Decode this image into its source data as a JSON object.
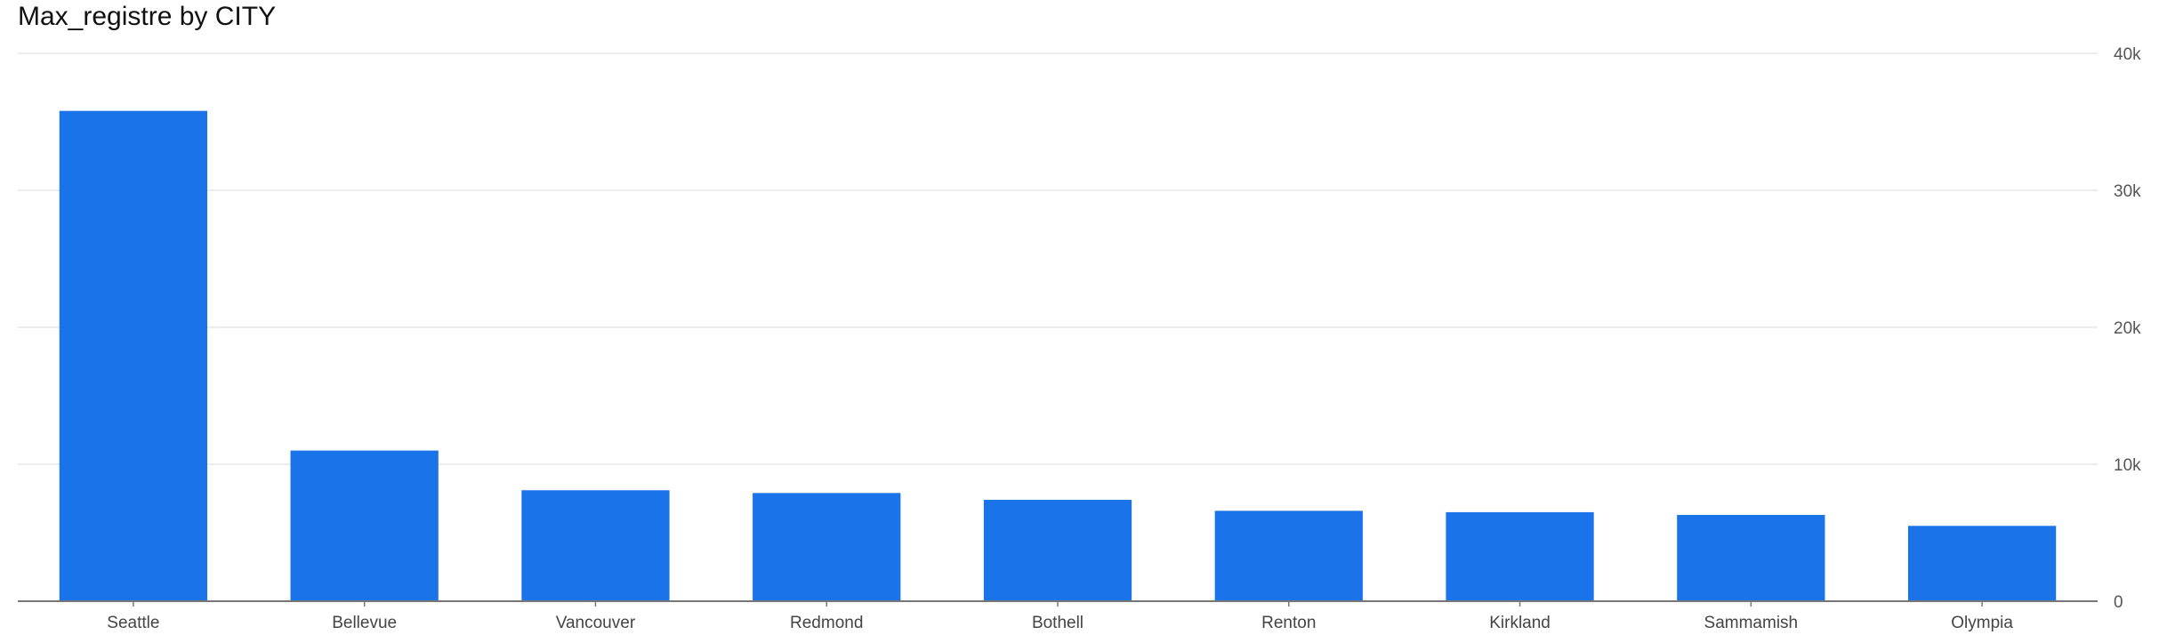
{
  "chart_data": {
    "type": "bar",
    "title": "Max_registre by CITY",
    "xlabel": "",
    "ylabel": "",
    "categories": [
      "Seattle",
      "Bellevue",
      "Vancouver",
      "Redmond",
      "Bothell",
      "Renton",
      "Kirkland",
      "Sammamish",
      "Olympia"
    ],
    "values": [
      35800,
      11000,
      8100,
      7900,
      7400,
      6600,
      6500,
      6300,
      5500
    ],
    "ylim": [
      0,
      40000
    ],
    "y_ticks": [
      0,
      10000,
      20000,
      30000,
      40000
    ],
    "y_tick_labels": [
      "0",
      "10k",
      "20k",
      "30k",
      "40k"
    ],
    "y_axis_side": "right",
    "grid": true,
    "legend": "none",
    "colors": {
      "bar": "#1a73e8",
      "grid": "#e6e6e6",
      "axis": "#777777"
    }
  }
}
